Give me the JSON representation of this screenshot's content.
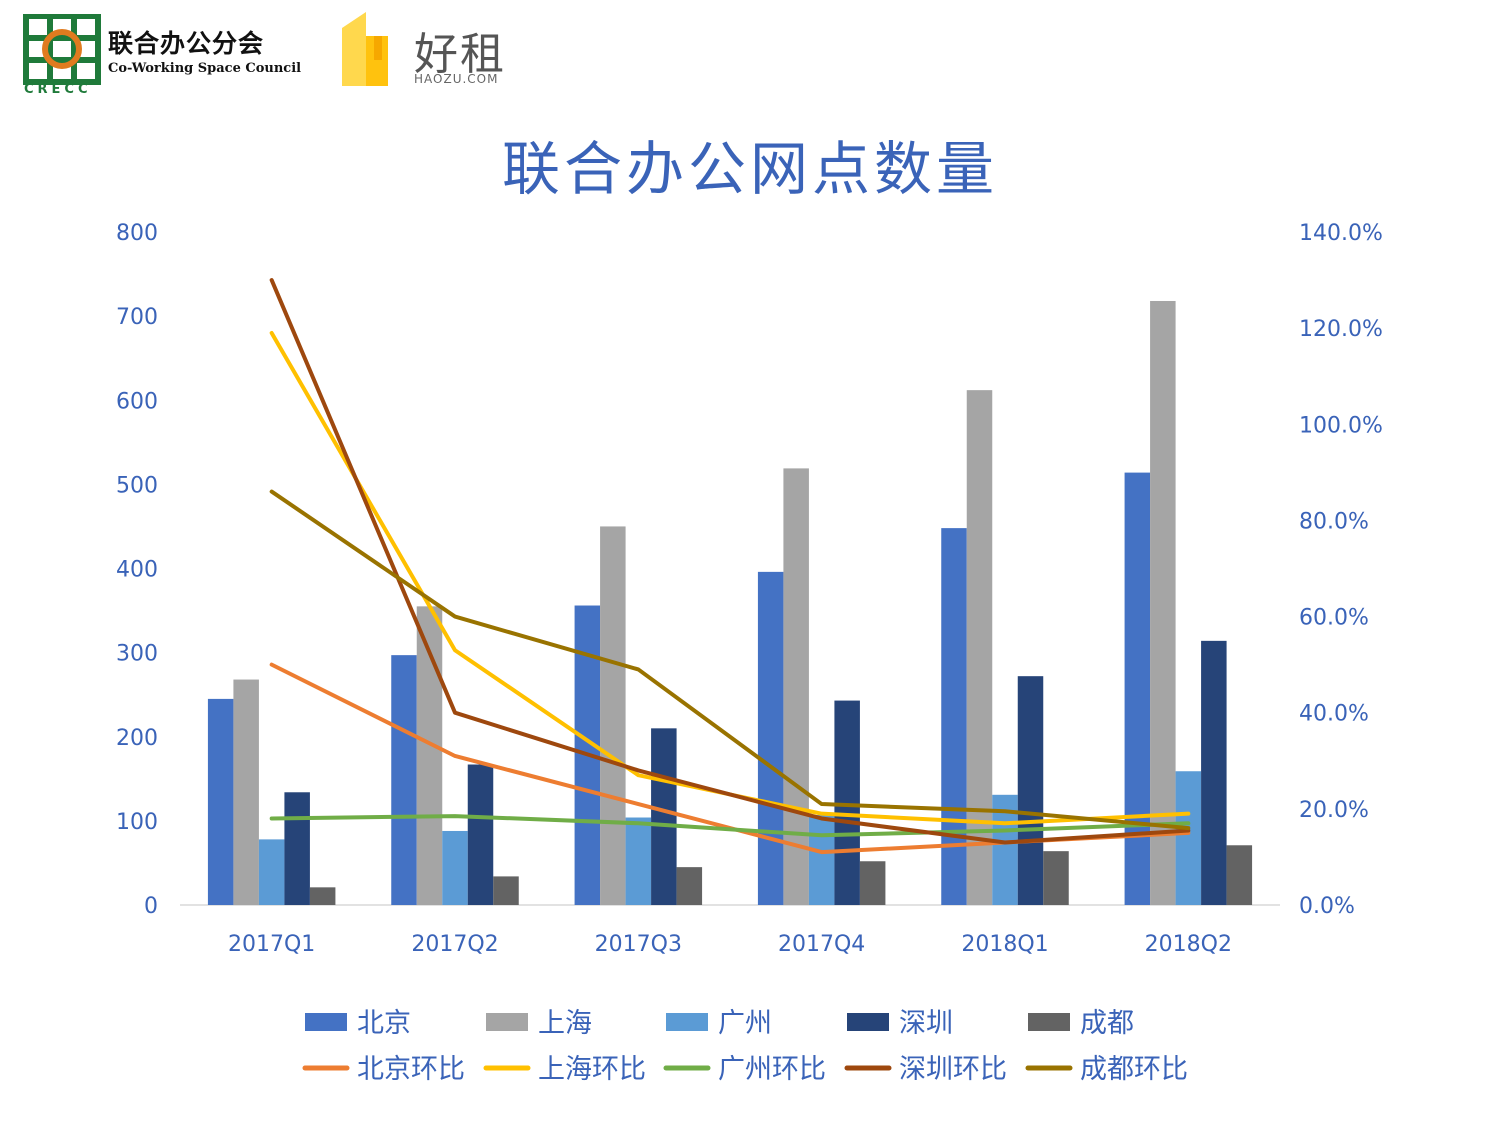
{
  "header": {
    "crecc_name_cn": "联合办公分会",
    "crecc_name_en": "Co-Working Space Council",
    "crecc_abbr": "CRECC",
    "haozu_name_cn": "好租",
    "haozu_name_en": "HAOZU.COM"
  },
  "colors": {
    "北京": "#4472c4",
    "上海": "#a5a5a5",
    "广州": "#5b9bd5",
    "深圳": "#264478",
    "成都": "#636363",
    "北京环比": "#ed7d31",
    "上海环比": "#ffc000",
    "广州环比": "#70ad47",
    "深圳环比": "#9e480e",
    "成都环比": "#997300",
    "text": "#3a63b8"
  },
  "chart_data": {
    "type": "bar",
    "title": "联合办公网点数量",
    "categories": [
      "2017Q1",
      "2017Q2",
      "2017Q3",
      "2017Q4",
      "2018Q1",
      "2018Q2"
    ],
    "y_left": {
      "ylim": [
        0,
        800
      ],
      "ticks": [
        "0",
        "100",
        "200",
        "300",
        "400",
        "500",
        "600",
        "700",
        "800"
      ]
    },
    "y_right": {
      "ylim": [
        0,
        1.4
      ],
      "ticks": [
        "0.0%",
        "20.0%",
        "40.0%",
        "60.0%",
        "80.0%",
        "100.0%",
        "120.0%",
        "140.0%"
      ]
    },
    "series": [
      {
        "name": "北京",
        "type": "bar",
        "axis": "left",
        "values": [
          245,
          297,
          356,
          396,
          448,
          514
        ]
      },
      {
        "name": "上海",
        "type": "bar",
        "axis": "left",
        "values": [
          268,
          355,
          450,
          519,
          612,
          718
        ]
      },
      {
        "name": "广州",
        "type": "bar",
        "axis": "left",
        "values": [
          78,
          88,
          104,
          107,
          131,
          159
        ]
      },
      {
        "name": "深圳",
        "type": "bar",
        "axis": "left",
        "values": [
          134,
          167,
          210,
          243,
          272,
          314
        ]
      },
      {
        "name": "成都",
        "type": "bar",
        "axis": "left",
        "values": [
          21,
          34,
          45,
          52,
          64,
          71
        ]
      },
      {
        "name": "北京环比",
        "type": "line",
        "axis": "right",
        "values": [
          0.5,
          0.31,
          0.21,
          0.11,
          0.13,
          0.15
        ]
      },
      {
        "name": "上海环比",
        "type": "line",
        "axis": "right",
        "values": [
          1.19,
          0.53,
          0.27,
          0.19,
          0.17,
          0.19
        ]
      },
      {
        "name": "广州环比",
        "type": "line",
        "axis": "right",
        "values": [
          0.18,
          0.185,
          0.17,
          0.145,
          0.155,
          0.17
        ]
      },
      {
        "name": "深圳环比",
        "type": "line",
        "axis": "right",
        "values": [
          1.3,
          0.4,
          0.28,
          0.18,
          0.13,
          0.155
        ]
      },
      {
        "name": "成都环比",
        "type": "line",
        "axis": "right",
        "values": [
          0.86,
          0.6,
          0.49,
          0.21,
          0.195,
          0.16
        ]
      }
    ],
    "legend": {
      "placement": "bottom",
      "rows": [
        [
          "北京",
          "上海",
          "广州",
          "深圳",
          "成都"
        ],
        [
          "北京环比",
          "上海环比",
          "广州环比",
          "深圳环比",
          "成都环比"
        ]
      ]
    },
    "grid": false
  }
}
